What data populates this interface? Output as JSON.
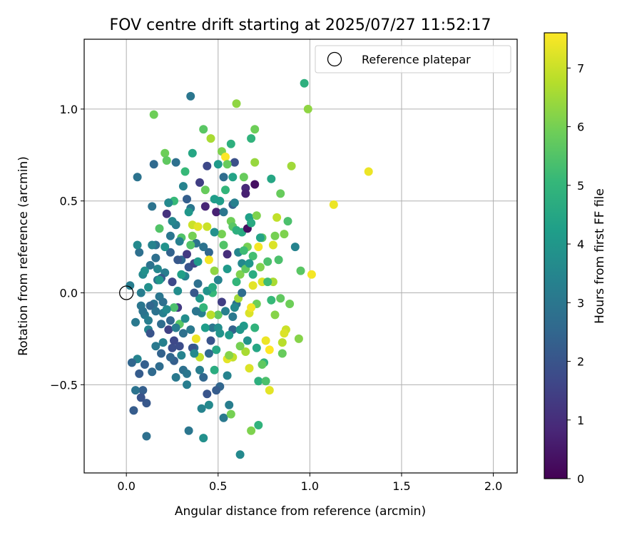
{
  "chart_data": {
    "type": "scatter",
    "title": "FOV centre drift starting at 2025/07/27 11:52:17",
    "xlabel": "Angular distance from reference (arcmin)",
    "ylabel": "Rotation from reference (arcmin)",
    "xlim": [
      -0.23,
      2.13
    ],
    "ylim": [
      -0.98,
      1.38
    ],
    "xticks": [
      0.0,
      0.5,
      1.0,
      1.5,
      2.0
    ],
    "xtick_labels": [
      "0.0",
      "0.5",
      "1.0",
      "1.5",
      "2.0"
    ],
    "yticks": [
      -0.5,
      0.0,
      0.5,
      1.0
    ],
    "ytick_labels": [
      "−0.5",
      "0.0",
      "0.5",
      "1.0"
    ],
    "grid": true,
    "legend": {
      "position": "top-right",
      "entries": [
        {
          "label": "Reference platepar",
          "marker": "open-circle"
        }
      ]
    },
    "reference_point": {
      "x": 0.0,
      "y": 0.0
    },
    "colorbar": {
      "label": "Hours from first FF file",
      "range": [
        0,
        7.6
      ],
      "ticks": [
        0,
        1,
        2,
        3,
        4,
        5,
        6,
        7
      ],
      "tick_labels": [
        "0",
        "1",
        "2",
        "3",
        "4",
        "5",
        "6",
        "7"
      ],
      "colormap": "viridis",
      "colors": [
        "#440154",
        "#482878",
        "#3e4989",
        "#31688e",
        "#26828e",
        "#1f9e89",
        "#35b779",
        "#6ece58",
        "#b5de2b",
        "#fde725"
      ]
    },
    "points": [
      [
        0.02,
        0.04,
        3.2
      ],
      [
        0.05,
        -0.16,
        3.1
      ],
      [
        0.06,
        0.63,
        2.9
      ],
      [
        0.07,
        0.22,
        2.8
      ],
      [
        0.08,
        -0.07,
        3.0
      ],
      [
        0.1,
        -0.12,
        3.1
      ],
      [
        0.12,
        -0.2,
        3.4
      ],
      [
        0.14,
        0.47,
        2.9
      ],
      [
        0.15,
        0.7,
        2.6
      ],
      [
        0.16,
        0.19,
        2.8
      ],
      [
        0.17,
        0.07,
        2.9
      ],
      [
        0.18,
        -0.02,
        3.0
      ],
      [
        0.2,
        -0.27,
        3.3
      ],
      [
        0.22,
        0.43,
        1.1
      ],
      [
        0.23,
        0.49,
        2.2
      ],
      [
        0.24,
        -0.15,
        2.5
      ],
      [
        0.25,
        0.06,
        1.7
      ],
      [
        0.27,
        0.37,
        3.2
      ],
      [
        0.28,
        -0.08,
        1.3
      ],
      [
        0.3,
        0.18,
        2.6
      ],
      [
        0.31,
        -0.22,
        2.8
      ],
      [
        0.33,
        0.51,
        2.3
      ],
      [
        0.34,
        0.14,
        2.0
      ],
      [
        0.35,
        1.07,
        3.0
      ],
      [
        0.37,
        -0.3,
        2.7
      ],
      [
        0.38,
        0.27,
        2.9
      ],
      [
        0.4,
        0.6,
        1.4
      ],
      [
        0.41,
        -0.11,
        3.3
      ],
      [
        0.43,
        0.47,
        0.8
      ],
      [
        0.44,
        -0.55,
        2.0
      ],
      [
        0.45,
        0.22,
        2.5
      ],
      [
        0.47,
        -0.19,
        3.0
      ],
      [
        0.49,
        0.44,
        0.7
      ],
      [
        0.5,
        0.07,
        3.4
      ],
      [
        0.51,
        -0.51,
        2.5
      ],
      [
        0.53,
        0.63,
        2.7
      ],
      [
        0.55,
        0.21,
        1.0
      ],
      [
        0.56,
        -0.61,
        3.2
      ],
      [
        0.58,
        0.48,
        2.4
      ],
      [
        0.59,
        0.71,
        1.9
      ],
      [
        0.6,
        -0.06,
        2.9
      ],
      [
        0.62,
        -0.88,
        3.6
      ],
      [
        0.63,
        0.33,
        4.6
      ],
      [
        0.65,
        0.57,
        0.9
      ],
      [
        0.66,
        -0.26,
        3.9
      ],
      [
        0.67,
        0.41,
        4.3
      ],
      [
        0.69,
        0.1,
        4.7
      ],
      [
        0.7,
        0.59,
        0.3
      ],
      [
        0.71,
        -0.3,
        4.5
      ],
      [
        0.72,
        -0.48,
        4.8
      ],
      [
        0.74,
        0.3,
        5.6
      ],
      [
        0.75,
        -0.38,
        4.9
      ],
      [
        0.77,
        0.17,
        5.4
      ],
      [
        0.78,
        -0.53,
        7.3
      ],
      [
        0.79,
        0.62,
        4.5
      ],
      [
        0.8,
        0.06,
        6.6
      ],
      [
        0.81,
        -0.12,
        6.2
      ],
      [
        0.82,
        0.41,
        6.9
      ],
      [
        0.84,
        0.54,
        5.8
      ],
      [
        0.85,
        -0.27,
        6.8
      ],
      [
        0.86,
        0.32,
        6.1
      ],
      [
        0.87,
        -0.2,
        7.0
      ],
      [
        0.89,
        -0.06,
        5.9
      ],
      [
        0.9,
        0.69,
        6.5
      ],
      [
        0.92,
        0.25,
        3.4
      ],
      [
        0.94,
        -0.25,
        6.2
      ],
      [
        0.95,
        0.12,
        5.6
      ],
      [
        0.97,
        1.14,
        4.8
      ],
      [
        0.99,
        1.0,
        6.3
      ],
      [
        1.01,
        0.1,
        7.5
      ],
      [
        1.13,
        0.48,
        7.4
      ],
      [
        1.32,
        0.66,
        7.4
      ],
      [
        0.15,
        0.97,
        5.9
      ],
      [
        0.21,
        0.76,
        5.9
      ],
      [
        0.26,
        0.5,
        5.1
      ],
      [
        0.32,
        0.66,
        5.1
      ],
      [
        0.36,
        0.37,
        7.0
      ],
      [
        0.42,
        0.89,
        5.6
      ],
      [
        0.46,
        0.84,
        6.6
      ],
      [
        0.52,
        0.77,
        6.1
      ],
      [
        0.54,
        0.74,
        7.6
      ],
      [
        0.57,
        0.81,
        4.8
      ],
      [
        0.6,
        1.03,
        6.3
      ],
      [
        0.64,
        0.63,
        5.8
      ],
      [
        0.68,
        0.84,
        4.9
      ],
      [
        0.7,
        0.89,
        5.9
      ],
      [
        0.72,
        0.25,
        7.5
      ],
      [
        0.74,
        0.06,
        7.2
      ],
      [
        0.76,
        -0.26,
        7.4
      ],
      [
        0.67,
        -0.11,
        7.2
      ],
      [
        0.65,
        -0.32,
        6.6
      ],
      [
        0.58,
        -0.35,
        6.9
      ],
      [
        0.55,
        -0.36,
        7.3
      ],
      [
        0.5,
        -0.12,
        5.7
      ],
      [
        0.48,
        0.12,
        6.3
      ],
      [
        0.45,
        0.18,
        7.5
      ],
      [
        0.4,
        -0.35,
        6.9
      ],
      [
        0.38,
        -0.25,
        7.4
      ],
      [
        0.44,
        0.36,
        7.0
      ],
      [
        0.39,
        0.36,
        7.3
      ],
      [
        0.61,
        -0.03,
        6.5
      ],
      [
        0.57,
        0.39,
        5.9
      ],
      [
        0.66,
        0.25,
        6.0
      ],
      [
        0.69,
        0.04,
        7.3
      ],
      [
        0.73,
        0.14,
        6.1
      ],
      [
        0.78,
        -0.31,
        7.6
      ],
      [
        0.8,
        0.26,
        7.2
      ],
      [
        0.83,
        0.18,
        5.4
      ],
      [
        0.86,
        -0.22,
        7.2
      ],
      [
        0.71,
        -0.06,
        5.9
      ],
      [
        0.62,
        0.1,
        6.1
      ],
      [
        0.53,
        0.26,
        5.5
      ],
      [
        0.47,
        0.0,
        5.1
      ],
      [
        0.42,
        -0.08,
        5.0
      ],
      [
        0.36,
        0.31,
        6.0
      ],
      [
        0.3,
        0.3,
        5.5
      ],
      [
        0.26,
        -0.08,
        5.4
      ],
      [
        0.18,
        0.35,
        5.5
      ],
      [
        0.56,
        -0.34,
        6.2
      ],
      [
        0.62,
        -0.29,
        6.0
      ],
      [
        0.68,
        -0.08,
        7.5
      ],
      [
        0.74,
        -0.39,
        5.7
      ],
      [
        0.67,
        -0.41,
        7.2
      ],
      [
        0.52,
        0.32,
        6.0
      ],
      [
        0.46,
        -0.12,
        6.8
      ],
      [
        0.35,
        0.26,
        5.5
      ],
      [
        0.29,
        -0.17,
        5.6
      ],
      [
        0.22,
        0.72,
        5.7
      ],
      [
        0.28,
        0.01,
        3.7
      ],
      [
        0.39,
        0.05,
        2.8
      ],
      [
        0.32,
        0.09,
        3.4
      ],
      [
        0.24,
        0.31,
        3.0
      ],
      [
        0.19,
        -0.33,
        2.4
      ],
      [
        0.14,
        -0.43,
        2.6
      ],
      [
        0.11,
        -0.6,
        2.1
      ],
      [
        0.09,
        -0.53,
        2.3
      ],
      [
        0.06,
        -0.36,
        3.4
      ],
      [
        0.04,
        -0.64,
        2.2
      ],
      [
        0.11,
        -0.78,
        2.8
      ],
      [
        0.16,
        -0.29,
        3.1
      ],
      [
        0.2,
        -0.05,
        2.8
      ],
      [
        0.23,
        -0.2,
        1.5
      ],
      [
        0.27,
        -0.46,
        3.1
      ],
      [
        0.33,
        -0.5,
        3.2
      ],
      [
        0.34,
        -0.75,
        3.0
      ],
      [
        0.41,
        -0.63,
        3.4
      ],
      [
        0.42,
        -0.79,
        3.8
      ],
      [
        0.49,
        -0.53,
        2.2
      ],
      [
        0.53,
        -0.68,
        3.1
      ],
      [
        0.57,
        -0.66,
        6.0
      ],
      [
        0.68,
        -0.75,
        6.1
      ],
      [
        0.72,
        -0.72,
        4.9
      ],
      [
        0.45,
        -0.61,
        3.6
      ],
      [
        0.36,
        -0.3,
        2.0
      ],
      [
        0.31,
        -0.42,
        2.8
      ],
      [
        0.27,
        -0.19,
        3.2
      ],
      [
        0.25,
        -0.3,
        1.8
      ],
      [
        0.18,
        -0.4,
        2.7
      ],
      [
        0.13,
        -0.22,
        2.0
      ],
      [
        0.1,
        -0.39,
        2.3
      ],
      [
        0.08,
        -0.57,
        2.0
      ],
      [
        0.07,
        -0.44,
        2.2
      ],
      [
        0.03,
        -0.38,
        2.5
      ],
      [
        0.09,
        0.1,
        3.6
      ],
      [
        0.13,
        0.15,
        2.9
      ],
      [
        0.17,
        0.13,
        3.5
      ],
      [
        0.21,
        0.11,
        3.2
      ],
      [
        0.24,
        0.22,
        2.4
      ],
      [
        0.28,
        0.18,
        2.1
      ],
      [
        0.33,
        0.21,
        1.3
      ],
      [
        0.37,
        0.16,
        1.6
      ],
      [
        0.42,
        0.25,
        2.9
      ],
      [
        0.48,
        0.33,
        3.8
      ],
      [
        0.53,
        0.44,
        3.0
      ],
      [
        0.59,
        0.49,
        3.3
      ],
      [
        0.63,
        0.16,
        3.6
      ],
      [
        0.66,
        0.35,
        0.3
      ],
      [
        0.61,
        0.22,
        3.5
      ],
      [
        0.58,
        -0.2,
        2.4
      ],
      [
        0.52,
        -0.05,
        1.4
      ],
      [
        0.46,
        -0.26,
        2.0
      ],
      [
        0.43,
        -0.19,
        4.2
      ],
      [
        0.38,
        -0.1,
        3.0
      ],
      [
        0.32,
        -0.14,
        3.7
      ],
      [
        0.26,
        -0.37,
        2.3
      ],
      [
        0.2,
        -0.11,
        3.3
      ],
      [
        0.15,
        -0.06,
        2.9
      ],
      [
        0.12,
        0.03,
        3.8
      ],
      [
        0.05,
        -0.53,
        2.9
      ],
      [
        0.13,
        -0.07,
        2.5
      ],
      [
        0.16,
        0.26,
        2.8
      ],
      [
        0.19,
        0.08,
        2.2
      ],
      [
        0.23,
        0.49,
        3.6
      ],
      [
        0.29,
        0.28,
        3.3
      ],
      [
        0.35,
        0.46,
        3.0
      ],
      [
        0.4,
        -0.42,
        3.2
      ],
      [
        0.44,
        0.01,
        3.9
      ],
      [
        0.49,
        -0.31,
        4.5
      ],
      [
        0.55,
        -0.45,
        3.4
      ],
      [
        0.6,
        0.06,
        5.0
      ],
      [
        0.64,
        -0.18,
        4.1
      ],
      [
        0.7,
        -0.19,
        4.9
      ],
      [
        0.73,
        0.3,
        4.4
      ],
      [
        0.76,
        -0.48,
        5.4
      ],
      [
        0.79,
        -0.04,
        5.1
      ],
      [
        0.84,
        -0.03,
        5.7
      ],
      [
        0.88,
        0.39,
        5.4
      ],
      [
        0.81,
        0.31,
        6.0
      ],
      [
        0.85,
        -0.33,
        5.8
      ],
      [
        0.77,
        0.06,
        5.2
      ],
      [
        0.71,
        0.42,
        6.1
      ],
      [
        0.69,
        0.2,
        5.3
      ],
      [
        0.65,
        0.13,
        5.7
      ],
      [
        0.58,
        0.36,
        5.6
      ],
      [
        0.54,
        0.56,
        5.0
      ],
      [
        0.51,
        0.5,
        4.2
      ],
      [
        0.47,
        0.03,
        4.6
      ],
      [
        0.43,
        0.56,
        5.8
      ],
      [
        0.39,
        0.17,
        4.1
      ],
      [
        0.34,
        0.44,
        4.0
      ],
      [
        0.3,
        0.1,
        4.3
      ],
      [
        0.25,
        0.39,
        3.5
      ],
      [
        0.21,
        0.25,
        3.9
      ],
      [
        0.18,
        0.07,
        4.0
      ],
      [
        0.14,
        0.26,
        3.4
      ],
      [
        0.1,
        0.12,
        3.8
      ],
      [
        0.08,
        0.0,
        3.2
      ],
      [
        0.06,
        0.26,
        3.6
      ],
      [
        0.27,
        0.71,
        2.8
      ],
      [
        0.31,
        0.58,
        3.4
      ],
      [
        0.36,
        0.76,
        4.5
      ],
      [
        0.44,
        0.69,
        1.7
      ],
      [
        0.48,
        0.51,
        4.2
      ],
      [
        0.5,
        0.7,
        4.1
      ],
      [
        0.55,
        0.7,
        5.8
      ],
      [
        0.58,
        0.63,
        4.4
      ],
      [
        0.65,
        0.54,
        0.7
      ],
      [
        0.7,
        0.71,
        6.4
      ],
      [
        0.67,
        0.16,
        4.0
      ],
      [
        0.63,
        0.0,
        2.7
      ],
      [
        0.59,
        -0.08,
        3.6
      ],
      [
        0.56,
        -0.23,
        4.1
      ],
      [
        0.5,
        -0.19,
        3.7
      ],
      [
        0.45,
        -0.33,
        2.6
      ],
      [
        0.4,
        -0.03,
        4.0
      ],
      [
        0.37,
        0.0,
        2.1
      ],
      [
        0.35,
        -0.2,
        3.1
      ],
      [
        0.29,
        -0.29,
        1.8
      ],
      [
        0.26,
        -0.26,
        1.7
      ],
      [
        0.22,
        -0.09,
        3.6
      ],
      [
        0.19,
        -0.17,
        2.7
      ],
      [
        0.16,
        -0.1,
        2.9
      ],
      [
        0.12,
        -0.15,
        3.2
      ],
      [
        0.09,
        -0.1,
        2.9
      ],
      [
        0.24,
        -0.35,
        2.5
      ],
      [
        0.3,
        -0.34,
        3.4
      ],
      [
        0.33,
        -0.44,
        3.0
      ],
      [
        0.37,
        -0.33,
        3.6
      ],
      [
        0.42,
        -0.46,
        2.5
      ],
      [
        0.48,
        -0.42,
        4.7
      ],
      [
        0.51,
        -0.22,
        3.9
      ],
      [
        0.54,
        -0.1,
        3.3
      ],
      [
        0.58,
        -0.13,
        3.1
      ],
      [
        0.62,
        -0.2,
        4.0
      ],
      [
        0.55,
        0.13,
        4.1
      ],
      [
        0.6,
        0.34,
        4.8
      ],
      [
        0.64,
        0.23,
        5.2
      ],
      [
        0.68,
        0.38,
        4.6
      ]
    ]
  }
}
